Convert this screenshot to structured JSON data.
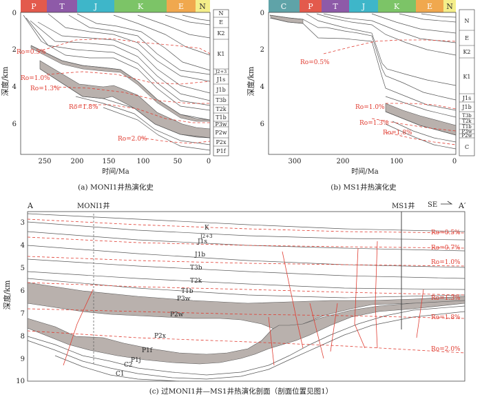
{
  "panel_a": {
    "periods": [
      {
        "label": "P",
        "color": "#e35a4c"
      },
      {
        "label": "T",
        "color": "#8e5aa8"
      },
      {
        "label": "J",
        "color": "#3eb6c9"
      },
      {
        "label": "K",
        "color": "#7cc467"
      },
      {
        "label": "E",
        "color": "#f0a84e"
      },
      {
        "label": "N",
        "color": "#f4ee8a"
      }
    ],
    "y_ticks": [
      "0",
      "2",
      "4",
      "6"
    ],
    "x_ticks": [
      "250",
      "200",
      "150",
      "100",
      "50",
      "0"
    ],
    "ylabel": "深度/km",
    "xlabel": "时间/Ma",
    "ro_labels": [
      "Ro=0.5%",
      "Ro=1.0%",
      "Ro=1.3%",
      "Ro=1.8%",
      "Ro=2.0%"
    ],
    "strata": [
      "N",
      "E",
      "K2",
      "K1",
      "J2+3",
      "J1s",
      "J1b",
      "T3b",
      "T2k",
      "T1b",
      "P3w",
      "P2w",
      "P2x",
      "P1f"
    ],
    "caption": "(a) MONI1井热演化史"
  },
  "panel_b": {
    "periods": [
      {
        "label": "C",
        "color": "#5fa3a8"
      },
      {
        "label": "P",
        "color": "#e35a4c"
      },
      {
        "label": "T",
        "color": "#8e5aa8"
      },
      {
        "label": "J",
        "color": "#3eb6c9"
      },
      {
        "label": "K",
        "color": "#7cc467"
      },
      {
        "label": "E",
        "color": "#f0a84e"
      },
      {
        "label": "N",
        "color": "#f4ee8a"
      }
    ],
    "y_ticks": [
      "0",
      "2",
      "4",
      "6"
    ],
    "x_ticks": [
      "300",
      "200",
      "100",
      "0"
    ],
    "ylabel": "深度/km",
    "xlabel": "时间/Ma",
    "ro_labels": [
      "Ro=0.5%",
      "Ro=1.0%",
      "Ro=1.3%",
      "Ro=1.8%"
    ],
    "strata": [
      "N",
      "E",
      "K2",
      "K1",
      "J1s",
      "J1b",
      "T3b",
      "T2k",
      "T1b",
      "P3w",
      "P2w",
      "C"
    ],
    "caption": "(b) MS1井热演化史"
  },
  "panel_c": {
    "end_left": "A",
    "end_right": "A′",
    "well_left": "MONI1井",
    "well_right": "MS1井",
    "direction": "SE",
    "y_ticks": [
      "3",
      "4",
      "5",
      "6",
      "7",
      "8",
      "9",
      "10"
    ],
    "ylabel": "深度/km",
    "ro_labels": [
      "Ro=0.5%",
      "Ro=0.7%",
      "Ro=1.0%",
      "Ro=1.3%",
      "Ro=1.8%",
      "Ro=2.0%"
    ],
    "strata": [
      "K",
      "J2+3",
      "J1s",
      "J1b",
      "T3b",
      "T2k",
      "T1b",
      "P3w",
      "P2w",
      "P2x",
      "P1f",
      "P1j",
      "C2",
      "C1"
    ],
    "caption": "(c) 过MONI1井—MS1井热演化剖面（剖面位置见图1）"
  }
}
